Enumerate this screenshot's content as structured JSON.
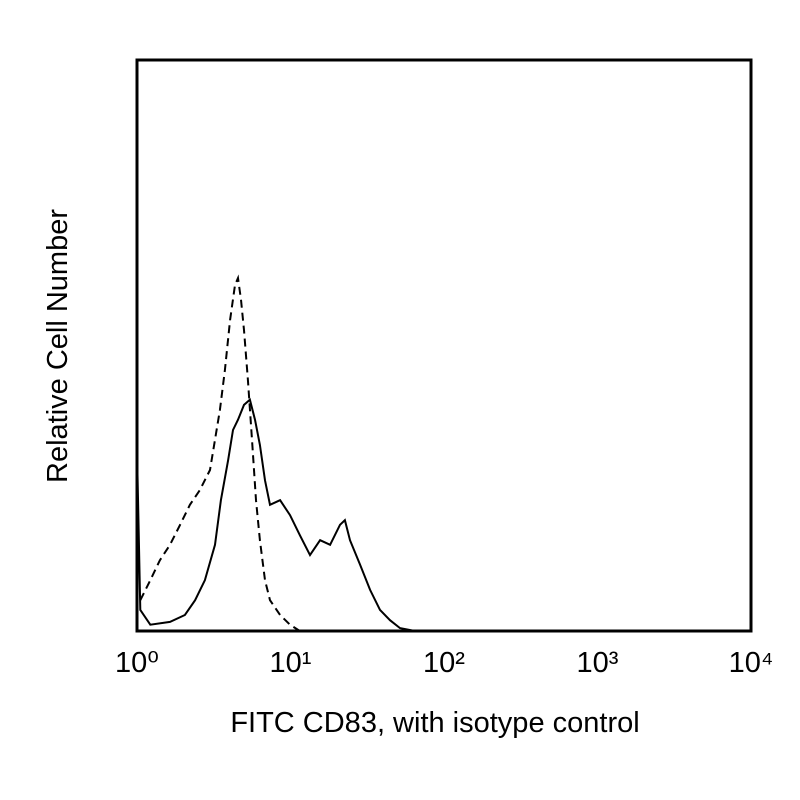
{
  "chart_data": {
    "type": "line",
    "xlabel": "FITC CD83, with isotype control",
    "ylabel": "Relative Cell Number",
    "xscale": "log",
    "xlim": [
      1,
      10000
    ],
    "ylim": [
      0,
      100
    ],
    "xticks": [
      {
        "value": 1,
        "label": "10⁰"
      },
      {
        "value": 10,
        "label": "10¹"
      },
      {
        "value": 100,
        "label": "10²"
      },
      {
        "value": 1000,
        "label": "10³"
      },
      {
        "value": 10000,
        "label": "10⁴"
      }
    ],
    "grid": false,
    "series": [
      {
        "color": "#000000",
        "line_style": "solid",
        "x": [
          1.0,
          1.05,
          1.22,
          1.64,
          2.05,
          2.39,
          2.77,
          3.22,
          3.52,
          3.92,
          4.22,
          4.55,
          4.98,
          5.44,
          5.87,
          6.32,
          6.82,
          7.35,
          8.55,
          9.93,
          11.5,
          13.4,
          15.6,
          18.1,
          21.0,
          22.6,
          24.4,
          28.4,
          33.0,
          38.3,
          44.5,
          51.7,
          64.7
        ],
        "values": [
          31.7,
          3.7,
          1.1,
          1.6,
          2.8,
          5.4,
          8.9,
          15.1,
          22.9,
          29.9,
          35.2,
          37.0,
          39.6,
          40.5,
          37.0,
          32.6,
          26.4,
          22.1,
          22.9,
          20.3,
          16.8,
          13.3,
          15.9,
          15.1,
          18.6,
          19.4,
          15.9,
          11.6,
          7.2,
          3.7,
          1.9,
          0.5,
          0
        ]
      },
      {
        "color": "#000000",
        "line_style": "dashed",
        "x": [
          1.05,
          1.22,
          1.41,
          1.64,
          1.91,
          2.21,
          2.57,
          2.99,
          3.22,
          3.47,
          3.74,
          4.04,
          4.35,
          4.55,
          4.76,
          4.98,
          5.28,
          5.61,
          5.96,
          6.32,
          6.82,
          7.35,
          8.55,
          9.93,
          11.5
        ],
        "values": [
          5.4,
          8.9,
          12.4,
          15.1,
          18.6,
          22.1,
          24.7,
          28.2,
          33.5,
          38.7,
          45.7,
          54.5,
          60.6,
          61.8,
          58.0,
          52.7,
          44.0,
          33.5,
          22.9,
          15.9,
          8.9,
          5.4,
          2.8,
          1.1,
          0
        ]
      }
    ]
  }
}
